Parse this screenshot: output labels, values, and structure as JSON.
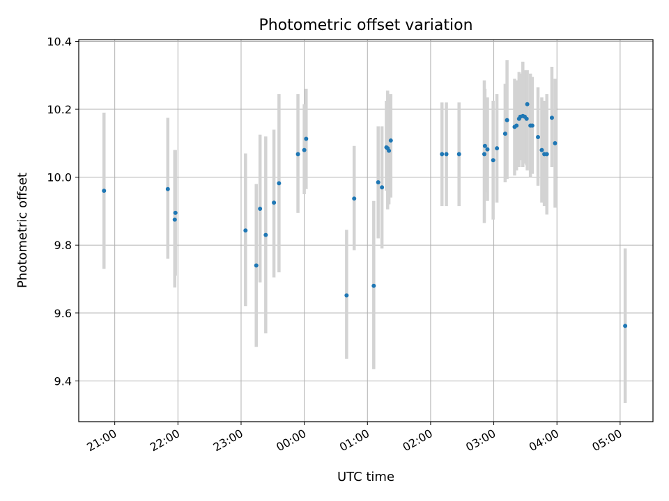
{
  "chart_data": {
    "type": "scatter",
    "title": "Photometric offset variation",
    "xlabel": "UTC time",
    "ylabel": "Photometric offset",
    "x_unit": "hours after 00:00 UTC",
    "xlim": [
      -3.57,
      5.52
    ],
    "ylim": [
      9.28,
      10.405
    ],
    "yticks": [
      9.4,
      9.6,
      9.8,
      10.0,
      10.2,
      10.4
    ],
    "ytick_labels": [
      "9.4",
      "9.6",
      "9.8",
      "10.0",
      "10.2",
      "10.4"
    ],
    "xticks": [
      -3,
      -2,
      -1,
      0,
      1,
      2,
      3,
      4,
      5
    ],
    "xtick_labels": [
      "21:00",
      "22:00",
      "23:00",
      "00:00",
      "01:00",
      "02:00",
      "03:00",
      "04:00",
      "05:00"
    ],
    "grid": true,
    "colors": {
      "point": "#1f77b4",
      "errorbar": "#d3d3d3"
    },
    "series": [
      {
        "name": "offset",
        "points": [
          {
            "x": -3.17,
            "y": 9.96,
            "lo": 9.73,
            "hi": 10.19
          },
          {
            "x": -2.16,
            "y": 9.965,
            "lo": 9.76,
            "hi": 10.175
          },
          {
            "x": -2.04,
            "y": 9.895,
            "lo": 9.71,
            "hi": 10.08
          },
          {
            "x": -2.05,
            "y": 9.875,
            "lo": 9.675,
            "hi": 10.08
          },
          {
            "x": -0.93,
            "y": 9.843,
            "lo": 9.62,
            "hi": 10.07
          },
          {
            "x": -0.76,
            "y": 9.74,
            "lo": 9.5,
            "hi": 9.98
          },
          {
            "x": -0.7,
            "y": 9.907,
            "lo": 9.69,
            "hi": 10.125
          },
          {
            "x": -0.61,
            "y": 9.83,
            "lo": 9.54,
            "hi": 10.12
          },
          {
            "x": -0.48,
            "y": 9.925,
            "lo": 9.705,
            "hi": 10.14
          },
          {
            "x": -0.4,
            "y": 9.982,
            "lo": 9.72,
            "hi": 10.245
          },
          {
            "x": -0.1,
            "y": 10.068,
            "lo": 9.895,
            "hi": 10.245
          },
          {
            "x": 0.0,
            "y": 10.08,
            "lo": 9.95,
            "hi": 10.215
          },
          {
            "x": 0.03,
            "y": 10.113,
            "lo": 9.965,
            "hi": 10.26
          },
          {
            "x": 0.67,
            "y": 9.652,
            "lo": 9.465,
            "hi": 9.845
          },
          {
            "x": 0.79,
            "y": 9.937,
            "lo": 9.785,
            "hi": 10.092
          },
          {
            "x": 1.1,
            "y": 9.68,
            "lo": 9.435,
            "hi": 9.93
          },
          {
            "x": 1.17,
            "y": 9.985,
            "lo": 9.82,
            "hi": 10.15
          },
          {
            "x": 1.23,
            "y": 9.97,
            "lo": 9.79,
            "hi": 10.15
          },
          {
            "x": 1.3,
            "y": 10.088,
            "lo": 9.96,
            "hi": 10.225
          },
          {
            "x": 1.32,
            "y": 10.085,
            "lo": 9.905,
            "hi": 10.255
          },
          {
            "x": 1.34,
            "y": 10.078,
            "lo": 9.92,
            "hi": 10.235
          },
          {
            "x": 1.37,
            "y": 10.108,
            "lo": 9.94,
            "hi": 10.245
          },
          {
            "x": 2.18,
            "y": 10.068,
            "lo": 9.915,
            "hi": 10.22
          },
          {
            "x": 2.25,
            "y": 10.068,
            "lo": 9.915,
            "hi": 10.22
          },
          {
            "x": 2.45,
            "y": 10.068,
            "lo": 9.915,
            "hi": 10.22
          },
          {
            "x": 2.85,
            "y": 10.068,
            "lo": 9.865,
            "hi": 10.285
          },
          {
            "x": 2.86,
            "y": 10.092,
            "lo": 9.955,
            "hi": 10.26
          },
          {
            "x": 2.9,
            "y": 10.082,
            "lo": 9.93,
            "hi": 10.235
          },
          {
            "x": 2.99,
            "y": 10.05,
            "lo": 9.875,
            "hi": 10.225
          },
          {
            "x": 3.05,
            "y": 10.085,
            "lo": 9.925,
            "hi": 10.245
          },
          {
            "x": 3.18,
            "y": 10.128,
            "lo": 9.985,
            "hi": 10.275
          },
          {
            "x": 3.21,
            "y": 10.168,
            "lo": 9.995,
            "hi": 10.345
          },
          {
            "x": 3.33,
            "y": 10.148,
            "lo": 10.005,
            "hi": 10.29
          },
          {
            "x": 3.36,
            "y": 10.152,
            "lo": 10.02,
            "hi": 10.285
          },
          {
            "x": 3.4,
            "y": 10.172,
            "lo": 10.03,
            "hi": 10.31
          },
          {
            "x": 3.42,
            "y": 10.178,
            "lo": 10.05,
            "hi": 10.305
          },
          {
            "x": 3.46,
            "y": 10.18,
            "lo": 10.03,
            "hi": 10.34
          },
          {
            "x": 3.49,
            "y": 10.178,
            "lo": 10.04,
            "hi": 10.315
          },
          {
            "x": 3.52,
            "y": 10.172,
            "lo": 10.035,
            "hi": 10.31
          },
          {
            "x": 3.53,
            "y": 10.215,
            "lo": 10.02,
            "hi": 10.315
          },
          {
            "x": 3.58,
            "y": 10.152,
            "lo": 10.0,
            "hi": 10.305
          },
          {
            "x": 3.61,
            "y": 10.152,
            "lo": 10.01,
            "hi": 10.295
          },
          {
            "x": 3.7,
            "y": 10.118,
            "lo": 9.975,
            "hi": 10.265
          },
          {
            "x": 3.76,
            "y": 10.08,
            "lo": 9.925,
            "hi": 10.235
          },
          {
            "x": 3.8,
            "y": 10.068,
            "lo": 9.915,
            "hi": 10.225
          },
          {
            "x": 3.84,
            "y": 10.068,
            "lo": 9.89,
            "hi": 10.245
          },
          {
            "x": 3.92,
            "y": 10.175,
            "lo": 10.03,
            "hi": 10.325
          },
          {
            "x": 3.97,
            "y": 10.1,
            "lo": 9.91,
            "hi": 10.29
          },
          {
            "x": 5.08,
            "y": 9.562,
            "lo": 9.335,
            "hi": 9.79
          }
        ]
      }
    ]
  }
}
